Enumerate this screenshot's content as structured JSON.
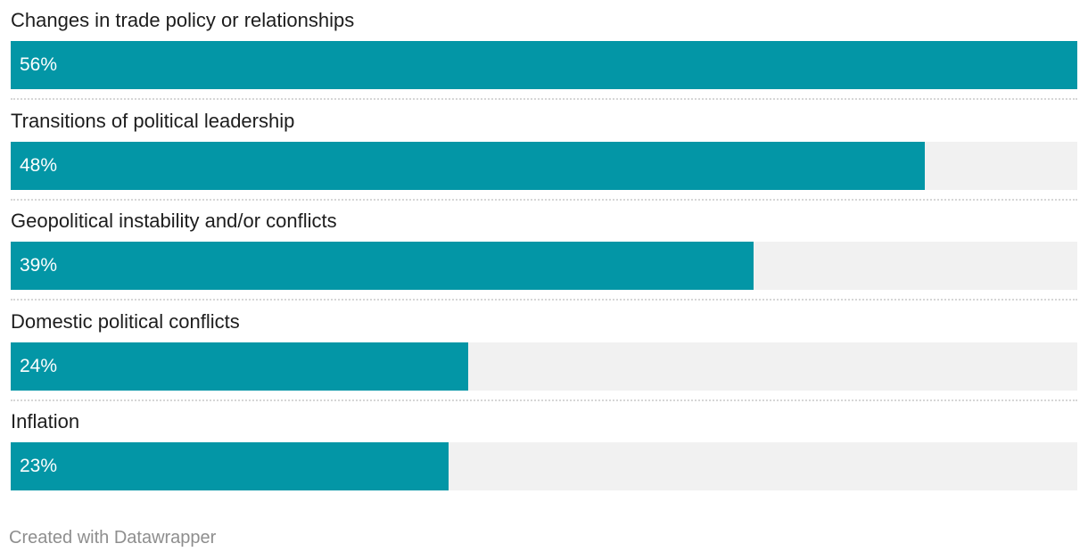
{
  "chart_data": {
    "type": "bar",
    "orientation": "horizontal",
    "categories": [
      "Changes in trade policy or relationships",
      "Transitions of political leadership",
      "Geopolitical instability and/or conflicts",
      "Domestic political conflicts",
      "Inflation"
    ],
    "values": [
      56,
      48,
      39,
      24,
      23
    ],
    "value_labels": [
      "56%",
      "48%",
      "39%",
      "24%",
      "23%"
    ],
    "xlim": [
      0,
      56
    ],
    "grid": false,
    "colors": {
      "bar": "#0396a6",
      "track": "#f1f1f1"
    }
  },
  "footer": {
    "credit": "Created with Datawrapper"
  }
}
